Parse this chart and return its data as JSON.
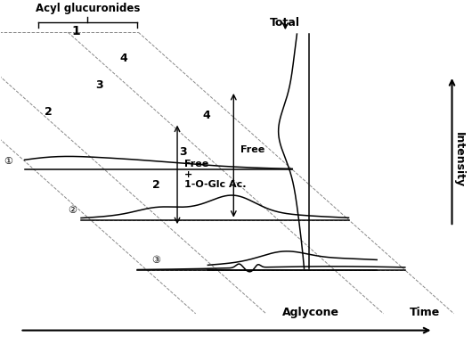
{
  "bg_color": "#ffffff",
  "line_color": "#000000",
  "dashed_color": "#888888",
  "figsize": [
    5.3,
    3.87
  ],
  "dpi": 100,
  "annotations": {
    "acyl_glucuronides": "Acyl glucuronides",
    "total": "Total",
    "free_plus": "Free\n+\n1-O-Glc Ac.",
    "free": "Free",
    "aglycone": "Aglycone",
    "time": "Time",
    "intensity": "Intensity",
    "circle1": "①",
    "circle2": "②",
    "circle3": "③"
  }
}
